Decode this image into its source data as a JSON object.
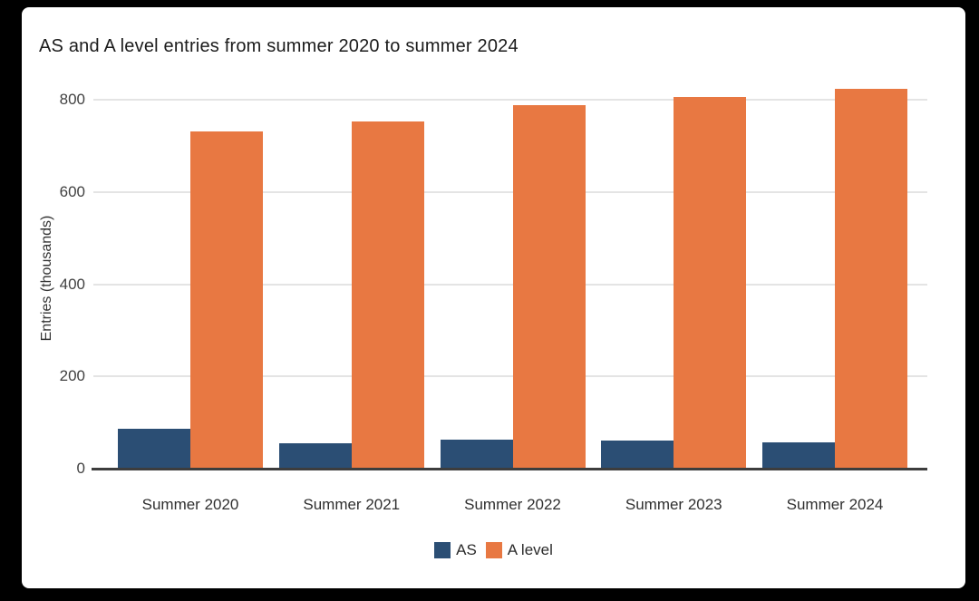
{
  "chart": {
    "title": "AS and A level entries from summer 2020 to summer 2024",
    "y_axis_title": "Entries (thousands)"
  },
  "chart_data": {
    "type": "bar",
    "title": "AS and A level entries from summer 2020 to summer 2024",
    "categories": [
      "Summer 2020",
      "Summer 2021",
      "Summer 2022",
      "Summer 2023",
      "Summer 2024"
    ],
    "series": [
      {
        "name": "AS",
        "color": "#2b4e74",
        "values": [
          86,
          55,
          62,
          61,
          58
        ]
      },
      {
        "name": "A level",
        "color": "#e87842",
        "values": [
          732,
          754,
          788,
          806,
          825
        ]
      }
    ],
    "xlabel": "",
    "ylabel": "Entries (thousands)",
    "ylim": [
      0,
      840
    ],
    "yticks": [
      0,
      200,
      400,
      600,
      800
    ],
    "grid": true,
    "legend_position": "bottom"
  },
  "colors": {
    "frame_background": "#000000",
    "panel_background": "#ffffff",
    "gridline": "#e4e4e4",
    "axis_line": "#3d3d3d",
    "as_series": "#2b4e74",
    "a_level_series": "#e87842"
  }
}
